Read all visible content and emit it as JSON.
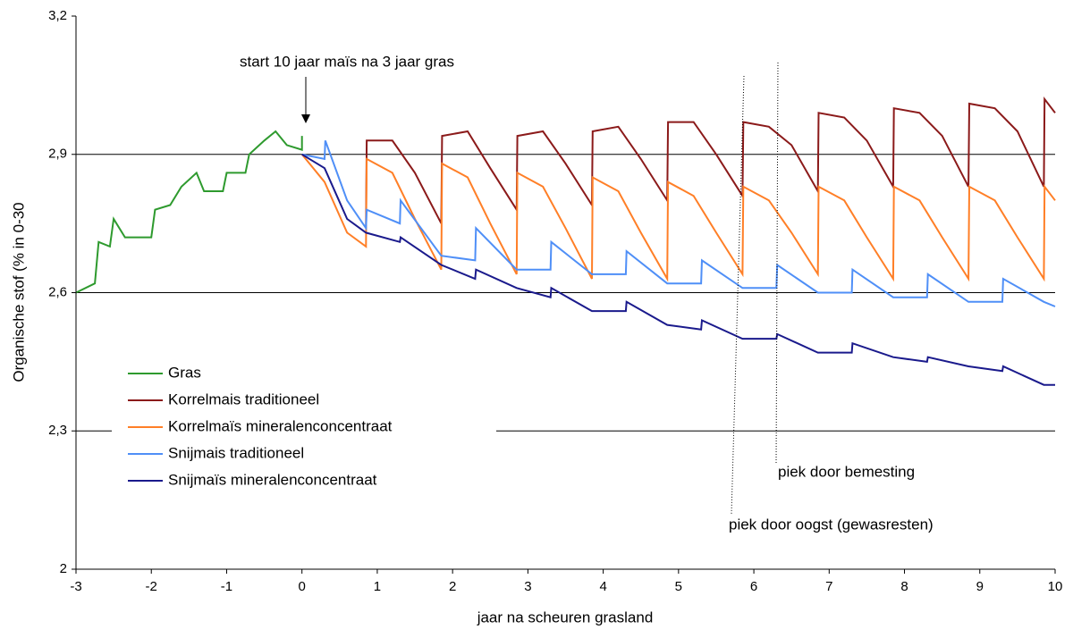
{
  "chart_data": {
    "type": "line",
    "xlabel": "jaar na scheuren grasland",
    "ylabel": "Organische stof (% in 0-30",
    "xlim": [
      -3,
      10
    ],
    "ylim": [
      2,
      3.2
    ],
    "xticks": [
      -3,
      -2,
      -1,
      0,
      1,
      2,
      3,
      4,
      5,
      6,
      7,
      8,
      9,
      10
    ],
    "yticks": [
      2,
      {
        "value": 2.3,
        "label": "2,3"
      },
      {
        "value": 2.6,
        "label": "2,6"
      },
      {
        "value": 2.9,
        "label": "2,9"
      },
      {
        "value": 3.2,
        "label": "3,2"
      }
    ],
    "grid": true,
    "legend": "lower-left",
    "annotations": [
      "start 10 jaar maïs na 3 jaar gras",
      "piek door bemesting",
      "piek door oogst (gewasresten)"
    ],
    "series": [
      {
        "name": "Gras",
        "color": "#2e9a2e",
        "x": [
          -3,
          -2.75,
          -2.7,
          -2.55,
          -2.5,
          -2.35,
          -2.0,
          -1.95,
          -1.75,
          -1.6,
          -1.4,
          -1.3,
          -1.05,
          -1.0,
          -0.75,
          -0.7,
          -0.5,
          -0.35,
          -0.2,
          0.0,
          0.0
        ],
        "values": [
          2.6,
          2.62,
          2.71,
          2.7,
          2.76,
          2.72,
          2.72,
          2.78,
          2.79,
          2.83,
          2.86,
          2.82,
          2.82,
          2.86,
          2.86,
          2.9,
          2.93,
          2.95,
          2.92,
          2.91,
          2.94
        ]
      },
      {
        "name": "Korrelmais traditioneel",
        "color": "#8b1a1a",
        "x": [
          0.85,
          0.86,
          1.2,
          1.5,
          1.85,
          1.86,
          2.2,
          2.5,
          2.85,
          2.86,
          3.2,
          3.5,
          3.85,
          3.86,
          4.2,
          4.5,
          4.85,
          4.86,
          5.2,
          5.5,
          5.85,
          5.86,
          6.2,
          6.5,
          6.85,
          6.86,
          7.2,
          7.5,
          7.85,
          7.86,
          8.2,
          8.5,
          8.85,
          8.86,
          9.2,
          9.5,
          9.85,
          9.86,
          10
        ],
        "values": [
          2.74,
          2.93,
          2.93,
          2.86,
          2.75,
          2.94,
          2.95,
          2.87,
          2.78,
          2.94,
          2.95,
          2.88,
          2.79,
          2.95,
          2.96,
          2.89,
          2.8,
          2.97,
          2.97,
          2.9,
          2.81,
          2.97,
          2.96,
          2.92,
          2.82,
          2.99,
          2.98,
          2.93,
          2.83,
          3.0,
          2.99,
          2.94,
          2.83,
          3.01,
          3.0,
          2.95,
          2.83,
          3.02,
          2.99
        ]
      },
      {
        "name": "Korrelmaïs mineralenconcentraat",
        "color": "#ff7f27",
        "x": [
          0,
          0.3,
          0.6,
          0.85,
          0.86,
          1.2,
          1.5,
          1.85,
          1.86,
          2.2,
          2.5,
          2.85,
          2.86,
          3.2,
          3.5,
          3.85,
          3.86,
          4.2,
          4.5,
          4.85,
          4.86,
          5.2,
          5.5,
          5.85,
          5.86,
          6.2,
          6.5,
          6.85,
          6.86,
          7.2,
          7.5,
          7.85,
          7.86,
          8.2,
          8.5,
          8.85,
          8.86,
          9.2,
          9.5,
          9.85,
          9.86,
          10
        ],
        "values": [
          2.9,
          2.84,
          2.73,
          2.7,
          2.89,
          2.86,
          2.76,
          2.65,
          2.88,
          2.85,
          2.75,
          2.64,
          2.86,
          2.83,
          2.74,
          2.63,
          2.85,
          2.82,
          2.73,
          2.63,
          2.84,
          2.81,
          2.73,
          2.64,
          2.83,
          2.8,
          2.73,
          2.64,
          2.83,
          2.8,
          2.72,
          2.63,
          2.83,
          2.8,
          2.72,
          2.63,
          2.83,
          2.8,
          2.72,
          2.63,
          2.83,
          2.8
        ]
      },
      {
        "name": "Snijmais traditioneel",
        "color": "#4f8ff7",
        "x": [
          0,
          0.3,
          0.31,
          0.6,
          0.85,
          0.86,
          1.3,
          1.31,
          1.85,
          2.3,
          2.31,
          2.85,
          3.3,
          3.31,
          3.85,
          4.3,
          4.31,
          4.85,
          5.3,
          5.31,
          5.85,
          6.3,
          6.31,
          6.85,
          7.3,
          7.31,
          7.85,
          8.3,
          8.31,
          8.85,
          9.3,
          9.31,
          9.85,
          10
        ],
        "values": [
          2.9,
          2.89,
          2.93,
          2.8,
          2.74,
          2.78,
          2.75,
          2.8,
          2.68,
          2.67,
          2.74,
          2.65,
          2.65,
          2.71,
          2.64,
          2.64,
          2.69,
          2.62,
          2.62,
          2.67,
          2.61,
          2.61,
          2.66,
          2.6,
          2.6,
          2.65,
          2.59,
          2.59,
          2.64,
          2.58,
          2.58,
          2.63,
          2.58,
          2.57
        ]
      },
      {
        "name": "Snijmaïs mineralenconcentraat",
        "color": "#1a1a8c",
        "x": [
          0,
          0.3,
          0.6,
          0.85,
          1.3,
          1.31,
          1.85,
          2.3,
          2.31,
          2.85,
          3.3,
          3.31,
          3.85,
          4.3,
          4.31,
          4.85,
          5.3,
          5.31,
          5.85,
          6.3,
          6.31,
          6.85,
          7.3,
          7.31,
          7.85,
          8.3,
          8.31,
          8.85,
          9.3,
          9.31,
          9.85,
          10
        ],
        "values": [
          2.9,
          2.87,
          2.76,
          2.73,
          2.71,
          2.72,
          2.66,
          2.63,
          2.65,
          2.61,
          2.59,
          2.61,
          2.56,
          2.56,
          2.58,
          2.53,
          2.52,
          2.54,
          2.5,
          2.5,
          2.51,
          2.47,
          2.47,
          2.49,
          2.46,
          2.45,
          2.46,
          2.44,
          2.43,
          2.44,
          2.4,
          2.4
        ]
      }
    ]
  }
}
